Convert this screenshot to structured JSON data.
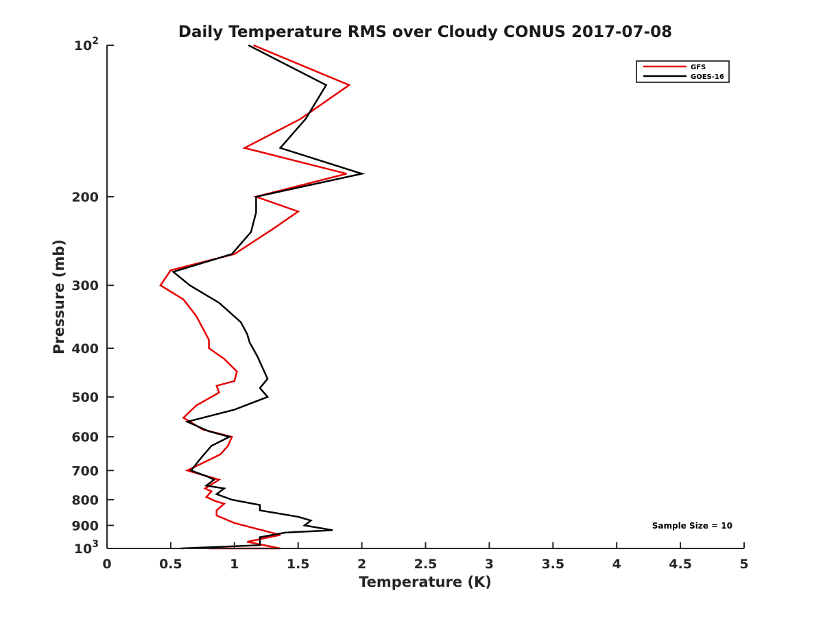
{
  "chart_data": {
    "type": "line",
    "title": "Daily Temperature RMS over Cloudy CONUS 2017-07-08",
    "xlabel": "Temperature (K)",
    "ylabel": "Pressure (mb)",
    "x_scale": "linear",
    "y_scale": "log",
    "y_reversed": true,
    "xlim": [
      0,
      5
    ],
    "ylim": [
      100,
      1000
    ],
    "x_ticks": [
      0,
      0.5,
      1,
      1.5,
      2,
      2.5,
      3,
      3.5,
      4,
      4.5,
      5
    ],
    "x_tick_labels": [
      "0",
      "0.5",
      "1",
      "1.5",
      "2",
      "2.5",
      "3",
      "3.5",
      "4",
      "4.5",
      "5"
    ],
    "y_ticks": [
      100,
      200,
      300,
      400,
      500,
      600,
      700,
      800,
      900,
      1000
    ],
    "y_tick_labels": [
      {
        "base": "10",
        "exp": "2"
      },
      {
        "base": "200",
        "exp": ""
      },
      {
        "base": "300",
        "exp": ""
      },
      {
        "base": "400",
        "exp": ""
      },
      {
        "base": "500",
        "exp": ""
      },
      {
        "base": "600",
        "exp": ""
      },
      {
        "base": "700",
        "exp": ""
      },
      {
        "base": "800",
        "exp": ""
      },
      {
        "base": "900",
        "exp": ""
      },
      {
        "base": "10",
        "exp": "3"
      }
    ],
    "grid": false,
    "legend_position": "top-right",
    "annotations": [
      {
        "text": "Sample Size = 10",
        "position": "bottom-right"
      }
    ],
    "series": [
      {
        "name": "GFS",
        "color": "#e60000",
        "points": [
          [
            1.15,
            100
          ],
          [
            1.9,
            120
          ],
          [
            1.52,
            140
          ],
          [
            1.08,
            160
          ],
          [
            1.88,
            180
          ],
          [
            1.17,
            200
          ],
          [
            1.5,
            214
          ],
          [
            1.3,
            232
          ],
          [
            1.0,
            260
          ],
          [
            0.5,
            280
          ],
          [
            0.42,
            300
          ],
          [
            0.6,
            320
          ],
          [
            0.7,
            345
          ],
          [
            0.8,
            385
          ],
          [
            0.8,
            400
          ],
          [
            0.92,
            420
          ],
          [
            1.02,
            445
          ],
          [
            1.0,
            465
          ],
          [
            0.86,
            475
          ],
          [
            0.88,
            490
          ],
          [
            0.7,
            520
          ],
          [
            0.6,
            550
          ],
          [
            0.75,
            580
          ],
          [
            0.98,
            600
          ],
          [
            0.95,
            625
          ],
          [
            0.89,
            650
          ],
          [
            0.63,
            700
          ],
          [
            0.88,
            730
          ],
          [
            0.77,
            760
          ],
          [
            0.82,
            770
          ],
          [
            0.78,
            790
          ],
          [
            0.85,
            805
          ],
          [
            0.92,
            815
          ],
          [
            0.86,
            840
          ],
          [
            0.86,
            860
          ],
          [
            1.0,
            890
          ],
          [
            1.36,
            940
          ],
          [
            1.1,
            970
          ],
          [
            1.36,
            1000
          ],
          [
            0.8,
            1000
          ]
        ]
      },
      {
        "name": "GOES-16",
        "color": "#000000",
        "points": [
          [
            1.11,
            100
          ],
          [
            1.72,
            120
          ],
          [
            1.56,
            140
          ],
          [
            1.36,
            160
          ],
          [
            2.0,
            180
          ],
          [
            1.17,
            200
          ],
          [
            1.17,
            215
          ],
          [
            1.13,
            235
          ],
          [
            0.98,
            260
          ],
          [
            0.52,
            282
          ],
          [
            0.65,
            300
          ],
          [
            0.88,
            325
          ],
          [
            1.05,
            355
          ],
          [
            1.1,
            375
          ],
          [
            1.12,
            390
          ],
          [
            1.18,
            415
          ],
          [
            1.26,
            460
          ],
          [
            1.2,
            480
          ],
          [
            1.26,
            500
          ],
          [
            1.0,
            530
          ],
          [
            0.63,
            560
          ],
          [
            0.8,
            585
          ],
          [
            0.96,
            600
          ],
          [
            0.82,
            625
          ],
          [
            0.74,
            660
          ],
          [
            0.66,
            700
          ],
          [
            0.79,
            720
          ],
          [
            0.84,
            730
          ],
          [
            0.78,
            750
          ],
          [
            0.92,
            760
          ],
          [
            0.86,
            780
          ],
          [
            0.98,
            800
          ],
          [
            1.2,
            820
          ],
          [
            1.2,
            840
          ],
          [
            1.5,
            865
          ],
          [
            1.6,
            880
          ],
          [
            1.55,
            900
          ],
          [
            1.77,
            920
          ],
          [
            1.4,
            930
          ],
          [
            1.2,
            950
          ],
          [
            1.2,
            985
          ],
          [
            0.58,
            1000
          ]
        ]
      }
    ]
  }
}
